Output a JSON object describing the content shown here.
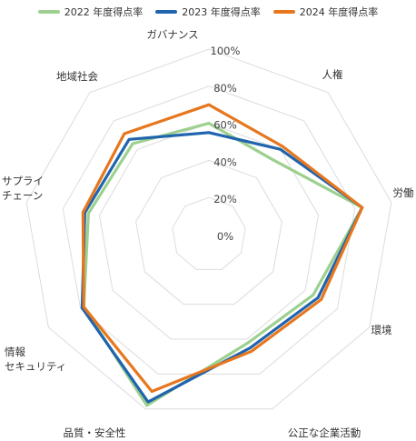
{
  "chart_data": {
    "type": "radar",
    "title": "",
    "axes": [
      "ガバナンス",
      "人権",
      "労働",
      "環境",
      "公正な企業活動",
      "品質・安全性",
      "情報\nセキュリティ",
      "サプライ\nチェーン",
      "地域社会"
    ],
    "ticks": [
      "0%",
      "20%",
      "40%",
      "60%",
      "80%",
      "100%"
    ],
    "range": [
      0,
      100
    ],
    "grid": true,
    "legend_position": "top",
    "series": [
      {
        "name": "2022 年度得点率",
        "color": "#9dd08f",
        "values": [
          60,
          53,
          84,
          65,
          62,
          98,
          78,
          66,
          64
        ]
      },
      {
        "name": "2023 年度得点率",
        "color": "#1f64ad",
        "values": [
          55,
          60,
          84,
          68,
          65,
          96,
          79,
          68,
          67
        ]
      },
      {
        "name": "2024 年度得点率",
        "color": "#e6771e",
        "values": [
          70,
          62,
          84,
          70,
          67,
          90,
          78,
          69,
          71
        ]
      }
    ]
  }
}
